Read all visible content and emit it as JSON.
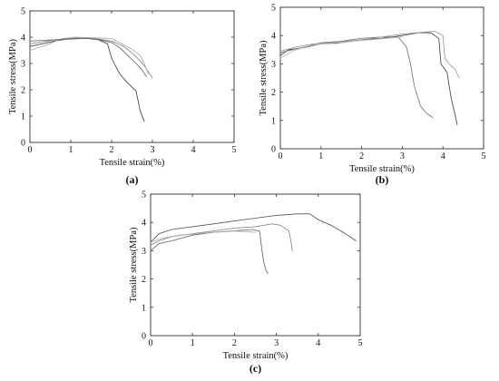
{
  "chart_data": [
    {
      "type": "line",
      "panel_label": "(a)",
      "xlabel": "Tensile strain(%)",
      "ylabel": "Tensile stress(MPa)",
      "xlim": [
        0,
        5
      ],
      "ylim": [
        0,
        5
      ],
      "xticks": [
        "0",
        "1",
        "2",
        "3",
        "4",
        "5"
      ],
      "yticks": [
        "0",
        "1",
        "2",
        "3",
        "4",
        "5"
      ],
      "grid": false,
      "series": [
        {
          "color": "#444444",
          "x": [
            0,
            0.3,
            0.6,
            1.0,
            1.3,
            1.6,
            1.9,
            2.0,
            2.2,
            2.4,
            2.6,
            2.7,
            2.8
          ],
          "y": [
            3.65,
            3.75,
            3.85,
            3.95,
            3.98,
            3.95,
            3.75,
            3.2,
            2.6,
            2.25,
            1.95,
            1.2,
            0.8
          ]
        },
        {
          "color": "#888888",
          "x": [
            0,
            0.3,
            0.6,
            1.0,
            1.3,
            1.6,
            2.0,
            2.3,
            2.5,
            2.7,
            2.85,
            3.0
          ],
          "y": [
            3.75,
            3.82,
            3.9,
            3.96,
            3.98,
            3.95,
            3.85,
            3.65,
            3.4,
            3.1,
            2.8,
            2.45
          ]
        },
        {
          "color": "#aaaaaa",
          "x": [
            0,
            0.4,
            0.8,
            1.1,
            1.5,
            2.0,
            2.5,
            2.7,
            2.8,
            2.9
          ],
          "y": [
            3.5,
            3.7,
            3.95,
            4.0,
            3.98,
            3.95,
            3.55,
            3.3,
            3.0,
            2.6
          ]
        },
        {
          "color": "#666666",
          "x": [
            0,
            0.3,
            0.6,
            0.9,
            1.2,
            1.4,
            1.7,
            2.0,
            2.2,
            2.4,
            2.6,
            2.75,
            2.85
          ],
          "y": [
            3.85,
            3.88,
            3.9,
            3.92,
            3.94,
            3.95,
            3.9,
            3.8,
            3.6,
            3.3,
            3.0,
            2.75,
            2.5
          ]
        }
      ]
    },
    {
      "type": "line",
      "panel_label": "(b)",
      "xlabel": "Tensile strain(%)",
      "ylabel": "Tensile stress(MPa)",
      "xlim": [
        0,
        5
      ],
      "ylim": [
        0,
        5
      ],
      "xticks": [
        "0",
        "1",
        "2",
        "3",
        "4",
        "5"
      ],
      "yticks": [
        "0",
        "1",
        "2",
        "3",
        "4",
        "5"
      ],
      "grid": false,
      "series": [
        {
          "color": "#444444",
          "x": [
            0,
            0.2,
            0.5,
            1.0,
            1.5,
            2.0,
            2.5,
            3.0,
            3.4,
            3.7,
            3.9,
            3.95,
            4.1,
            4.2,
            4.3,
            4.35
          ],
          "y": [
            3.3,
            3.5,
            3.55,
            3.7,
            3.75,
            3.85,
            3.9,
            4.0,
            4.1,
            4.1,
            3.9,
            3.0,
            2.7,
            1.8,
            1.2,
            0.85
          ]
        },
        {
          "color": "#777777",
          "x": [
            0,
            0.3,
            0.6,
            1.0,
            1.5,
            2.0,
            2.5,
            2.9,
            3.1,
            3.2,
            3.3,
            3.45,
            3.6,
            3.75
          ],
          "y": [
            3.4,
            3.5,
            3.6,
            3.75,
            3.8,
            3.9,
            3.95,
            3.95,
            3.6,
            3.0,
            2.2,
            1.5,
            1.25,
            1.1
          ]
        },
        {
          "color": "#999999",
          "x": [
            0,
            0.4,
            0.8,
            1.2,
            1.6,
            2.0,
            2.5,
            3.0,
            3.5,
            3.8,
            4.0,
            4.05,
            4.15,
            4.3,
            4.4
          ],
          "y": [
            3.45,
            3.6,
            3.7,
            3.75,
            3.8,
            3.85,
            3.95,
            4.05,
            4.12,
            4.15,
            4.0,
            3.2,
            3.0,
            2.8,
            2.5
          ]
        },
        {
          "color": "#bbbbbb",
          "x": [
            0,
            0.3,
            0.6,
            1.0,
            1.4,
            1.8,
            2.2,
            2.6,
            3.0
          ],
          "y": [
            3.2,
            3.45,
            3.6,
            3.7,
            3.72,
            3.8,
            3.85,
            3.9,
            3.95
          ]
        }
      ]
    },
    {
      "type": "line",
      "panel_label": "(c)",
      "xlabel": "Tensile strain(%)",
      "ylabel": "Tensile stress(MPa)",
      "xlim": [
        0,
        5
      ],
      "ylim": [
        0,
        5
      ],
      "xticks": [
        "0",
        "1",
        "2",
        "3",
        "4",
        "5"
      ],
      "yticks": [
        "0",
        "1",
        "2",
        "3",
        "4",
        "5"
      ],
      "grid": false,
      "series": [
        {
          "color": "#555555",
          "x": [
            0,
            0.2,
            0.5,
            1.0,
            1.5,
            2.0,
            2.5,
            3.0,
            3.5,
            3.8,
            4.0,
            4.3,
            4.6,
            4.9
          ],
          "y": [
            3.3,
            3.6,
            3.75,
            3.85,
            3.95,
            4.05,
            4.15,
            4.25,
            4.3,
            4.3,
            4.1,
            3.9,
            3.65,
            3.35
          ]
        },
        {
          "color": "#888888",
          "x": [
            0,
            0.2,
            0.5,
            1.0,
            1.5,
            2.0,
            2.5,
            2.9,
            3.1,
            3.3,
            3.35,
            3.38
          ],
          "y": [
            3.2,
            3.35,
            3.5,
            3.6,
            3.7,
            3.8,
            3.85,
            3.95,
            3.9,
            3.7,
            3.3,
            3.0
          ]
        },
        {
          "color": "#666666",
          "x": [
            0,
            0.2,
            0.5,
            1.0,
            1.5,
            2.0,
            2.4,
            2.6,
            2.65,
            2.7,
            2.75,
            2.8
          ],
          "y": [
            3.0,
            3.25,
            3.35,
            3.55,
            3.65,
            3.7,
            3.75,
            3.7,
            3.1,
            2.6,
            2.3,
            2.2
          ]
        },
        {
          "color": "#aaaaaa",
          "x": [
            0,
            0.3,
            0.7,
            1.1,
            1.5,
            1.9,
            2.2,
            2.5
          ],
          "y": [
            3.3,
            3.45,
            3.55,
            3.6,
            3.65,
            3.7,
            3.68,
            3.65
          ]
        }
      ]
    }
  ]
}
